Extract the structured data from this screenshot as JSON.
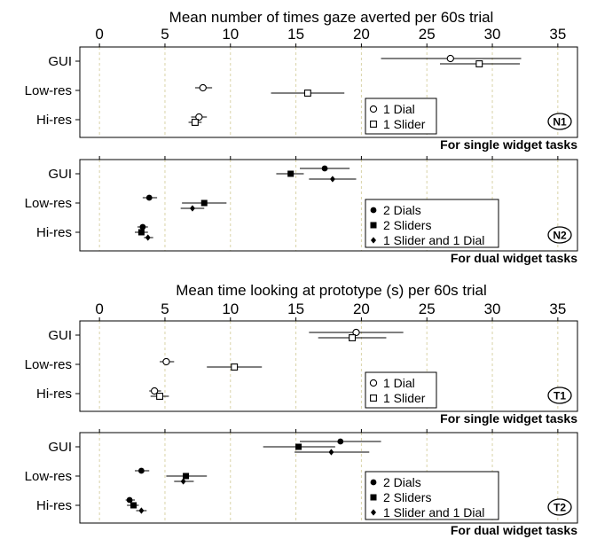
{
  "chart_data": [
    {
      "type": "scatter",
      "title": "Mean number of times gaze averted per 60s trial",
      "xlim": [
        -1.5,
        36.5
      ],
      "xticks": [
        0,
        5,
        10,
        15,
        20,
        25,
        30,
        35
      ],
      "grid": "vertical dashed",
      "panels": [
        {
          "id": "N1",
          "note": "For single widget tasks",
          "categories": [
            "GUI",
            "Low-res",
            "Hi-res"
          ],
          "legend_position": "bottom-right",
          "series": [
            {
              "name": "1 Dial",
              "marker": "circle-open",
              "points": [
                {
                  "category": "GUI",
                  "mean": 26.8,
                  "err_low": 21.5,
                  "err_high": 32.2
                },
                {
                  "category": "Low-res",
                  "mean": 7.9,
                  "err_low": 7.3,
                  "err_high": 8.6
                },
                {
                  "category": "Hi-res",
                  "mean": 7.6,
                  "err_low": 7.0,
                  "err_high": 8.2
                }
              ]
            },
            {
              "name": "1 Slider",
              "marker": "square-open",
              "points": [
                {
                  "category": "GUI",
                  "mean": 29.0,
                  "err_low": 26.0,
                  "err_high": 32.1
                },
                {
                  "category": "Low-res",
                  "mean": 15.9,
                  "err_low": 13.1,
                  "err_high": 18.7
                },
                {
                  "category": "Hi-res",
                  "mean": 7.3,
                  "err_low": 6.8,
                  "err_high": 7.8
                }
              ]
            }
          ]
        },
        {
          "id": "N2",
          "note": "For dual widget tasks",
          "categories": [
            "GUI",
            "Low-res",
            "Hi-res"
          ],
          "legend_position": "bottom-right",
          "series": [
            {
              "name": "2 Dials",
              "marker": "circle-filled",
              "points": [
                {
                  "category": "GUI",
                  "mean": 17.2,
                  "err_low": 15.3,
                  "err_high": 19.1
                },
                {
                  "category": "Low-res",
                  "mean": 3.8,
                  "err_low": 3.3,
                  "err_high": 4.4
                },
                {
                  "category": "Hi-res",
                  "mean": 3.3,
                  "err_low": 2.9,
                  "err_high": 3.7
                }
              ]
            },
            {
              "name": "2 Sliders",
              "marker": "square-filled",
              "points": [
                {
                  "category": "GUI",
                  "mean": 14.6,
                  "err_low": 13.5,
                  "err_high": 15.6
                },
                {
                  "category": "Low-res",
                  "mean": 8.0,
                  "err_low": 6.3,
                  "err_high": 9.7
                },
                {
                  "category": "Hi-res",
                  "mean": 3.2,
                  "err_low": 2.7,
                  "err_high": 3.7
                }
              ]
            },
            {
              "name": "1 Slider and 1 Dial",
              "marker": "diamond-filled",
              "points": [
                {
                  "category": "GUI",
                  "mean": 17.8,
                  "err_low": 16.0,
                  "err_high": 19.6
                },
                {
                  "category": "Low-res",
                  "mean": 7.1,
                  "err_low": 6.2,
                  "err_high": 8.0
                },
                {
                  "category": "Hi-res",
                  "mean": 3.7,
                  "err_low": 3.4,
                  "err_high": 4.1
                }
              ]
            }
          ]
        }
      ]
    },
    {
      "type": "scatter",
      "title": "Mean time looking at prototype (s) per 60s trial",
      "xlim": [
        -1.5,
        36.5
      ],
      "xticks": [
        0,
        5,
        10,
        15,
        20,
        25,
        30,
        35
      ],
      "grid": "vertical dashed",
      "panels": [
        {
          "id": "T1",
          "note": "For single widget tasks",
          "categories": [
            "GUI",
            "Low-res",
            "Hi-res"
          ],
          "legend_position": "bottom-right",
          "series": [
            {
              "name": "1 Dial",
              "marker": "circle-open",
              "points": [
                {
                  "category": "GUI",
                  "mean": 19.6,
                  "err_low": 16.0,
                  "err_high": 23.2
                },
                {
                  "category": "Low-res",
                  "mean": 5.1,
                  "err_low": 4.6,
                  "err_high": 5.7
                },
                {
                  "category": "Hi-res",
                  "mean": 4.2,
                  "err_low": 3.8,
                  "err_high": 4.7
                }
              ]
            },
            {
              "name": "1 Slider",
              "marker": "square-open",
              "points": [
                {
                  "category": "GUI",
                  "mean": 19.3,
                  "err_low": 16.7,
                  "err_high": 21.9
                },
                {
                  "category": "Low-res",
                  "mean": 10.3,
                  "err_low": 8.2,
                  "err_high": 12.4
                },
                {
                  "category": "Hi-res",
                  "mean": 4.6,
                  "err_low": 3.9,
                  "err_high": 5.3
                }
              ]
            }
          ]
        },
        {
          "id": "T2",
          "note": "For dual widget tasks",
          "categories": [
            "GUI",
            "Low-res",
            "Hi-res"
          ],
          "legend_position": "bottom-right",
          "series": [
            {
              "name": "2 Dials",
              "marker": "circle-filled",
              "points": [
                {
                  "category": "GUI",
                  "mean": 18.4,
                  "err_low": 15.3,
                  "err_high": 21.5
                },
                {
                  "category": "Low-res",
                  "mean": 3.2,
                  "err_low": 2.7,
                  "err_high": 3.8
                },
                {
                  "category": "Hi-res",
                  "mean": 2.3,
                  "err_low": 2.0,
                  "err_high": 2.7
                }
              ]
            },
            {
              "name": "2 Sliders",
              "marker": "square-filled",
              "points": [
                {
                  "category": "GUI",
                  "mean": 15.2,
                  "err_low": 12.5,
                  "err_high": 18.0
                },
                {
                  "category": "Low-res",
                  "mean": 6.6,
                  "err_low": 5.1,
                  "err_high": 8.2
                },
                {
                  "category": "Hi-res",
                  "mean": 2.6,
                  "err_low": 2.1,
                  "err_high": 3.0
                }
              ]
            },
            {
              "name": "1 Slider and 1 Dial",
              "marker": "diamond-filled",
              "points": [
                {
                  "category": "GUI",
                  "mean": 17.7,
                  "err_low": 14.9,
                  "err_high": 20.6
                },
                {
                  "category": "Low-res",
                  "mean": 6.4,
                  "err_low": 5.7,
                  "err_high": 7.2
                },
                {
                  "category": "Hi-res",
                  "mean": 3.2,
                  "err_low": 2.8,
                  "err_high": 3.6
                }
              ]
            }
          ]
        }
      ]
    }
  ],
  "colors": {
    "grid": "#d9d3a8",
    "ink": "#000000",
    "background": "#ffffff"
  }
}
